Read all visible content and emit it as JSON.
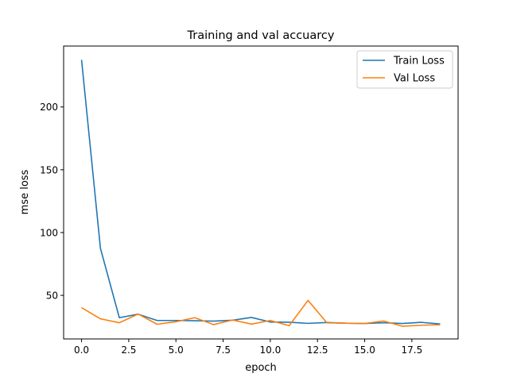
{
  "chart_data": {
    "type": "line",
    "title": "Training and val accuarcy",
    "xlabel": "epoch",
    "ylabel": "mse loss",
    "x": [
      0,
      1,
      2,
      3,
      4,
      5,
      6,
      7,
      8,
      9,
      10,
      11,
      12,
      13,
      14,
      15,
      16,
      17,
      18,
      19
    ],
    "xticks": [
      "0.0",
      "2.5",
      "5.0",
      "7.5",
      "10.0",
      "12.5",
      "15.0",
      "17.5"
    ],
    "xtick_values": [
      0,
      2.5,
      5,
      7.5,
      10,
      12.5,
      15,
      17.5
    ],
    "yticks": [
      "50",
      "100",
      "150",
      "200"
    ],
    "ytick_values": [
      50,
      100,
      150,
      200
    ],
    "xlim": [
      -0.95,
      19.95
    ],
    "ylim": [
      15.3,
      248.5
    ],
    "grid": false,
    "legend_position": "top-right",
    "series": [
      {
        "name": "Train Loss",
        "color": "#1f77b4",
        "values": [
          237.5,
          87.5,
          32.2,
          35.0,
          30.0,
          30.0,
          29.8,
          29.5,
          30.2,
          32.4,
          28.8,
          28.6,
          27.7,
          28.4,
          27.8,
          27.6,
          28.2,
          27.6,
          28.5,
          27.2
        ]
      },
      {
        "name": "Val Loss",
        "color": "#ff7f0e",
        "values": [
          40.2,
          31.3,
          28.2,
          35.1,
          27.0,
          29.0,
          32.2,
          26.7,
          30.4,
          27.1,
          30.0,
          25.9,
          46.0,
          28.1,
          27.8,
          27.6,
          29.6,
          25.4,
          26.2,
          26.6
        ]
      }
    ]
  }
}
